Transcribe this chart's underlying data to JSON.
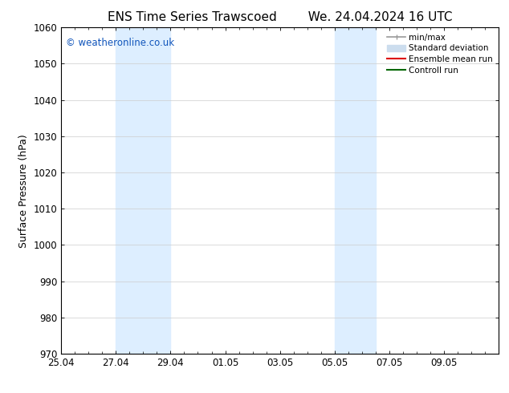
{
  "title_left": "ENS Time Series Trawscoed",
  "title_right": "We. 24.04.2024 16 UTC",
  "ylabel": "Surface Pressure (hPa)",
  "ylim": [
    970,
    1060
  ],
  "yticks": [
    970,
    980,
    990,
    1000,
    1010,
    1020,
    1030,
    1040,
    1050,
    1060
  ],
  "xtick_labels": [
    "25.04",
    "27.04",
    "29.04",
    "01.05",
    "03.05",
    "05.05",
    "07.05",
    "09.05"
  ],
  "xtick_positions": [
    0,
    2,
    4,
    6,
    8,
    10,
    12,
    14
  ],
  "n_days": 16,
  "shaded_bands": [
    {
      "x_start": 2,
      "x_end": 4,
      "color": "#ddeeff"
    },
    {
      "x_start": 10,
      "x_end": 11.5,
      "color": "#ddeeff"
    }
  ],
  "watermark_text": "© weatheronline.co.uk",
  "watermark_color": "#1155bb",
  "legend_items": [
    {
      "label": "min/max",
      "color": "#999999",
      "lw": 1.2
    },
    {
      "label": "Standard deviation",
      "color": "#ccddee",
      "lw": 7
    },
    {
      "label": "Ensemble mean run",
      "color": "#dd0000",
      "lw": 1.5
    },
    {
      "label": "Controll run",
      "color": "#006600",
      "lw": 1.5
    }
  ],
  "bg_color": "#ffffff",
  "plot_bg_color": "#ffffff",
  "tick_color": "#000000",
  "grid_color": "#cccccc",
  "title_fontsize": 11,
  "label_fontsize": 9,
  "tick_fontsize": 8.5
}
